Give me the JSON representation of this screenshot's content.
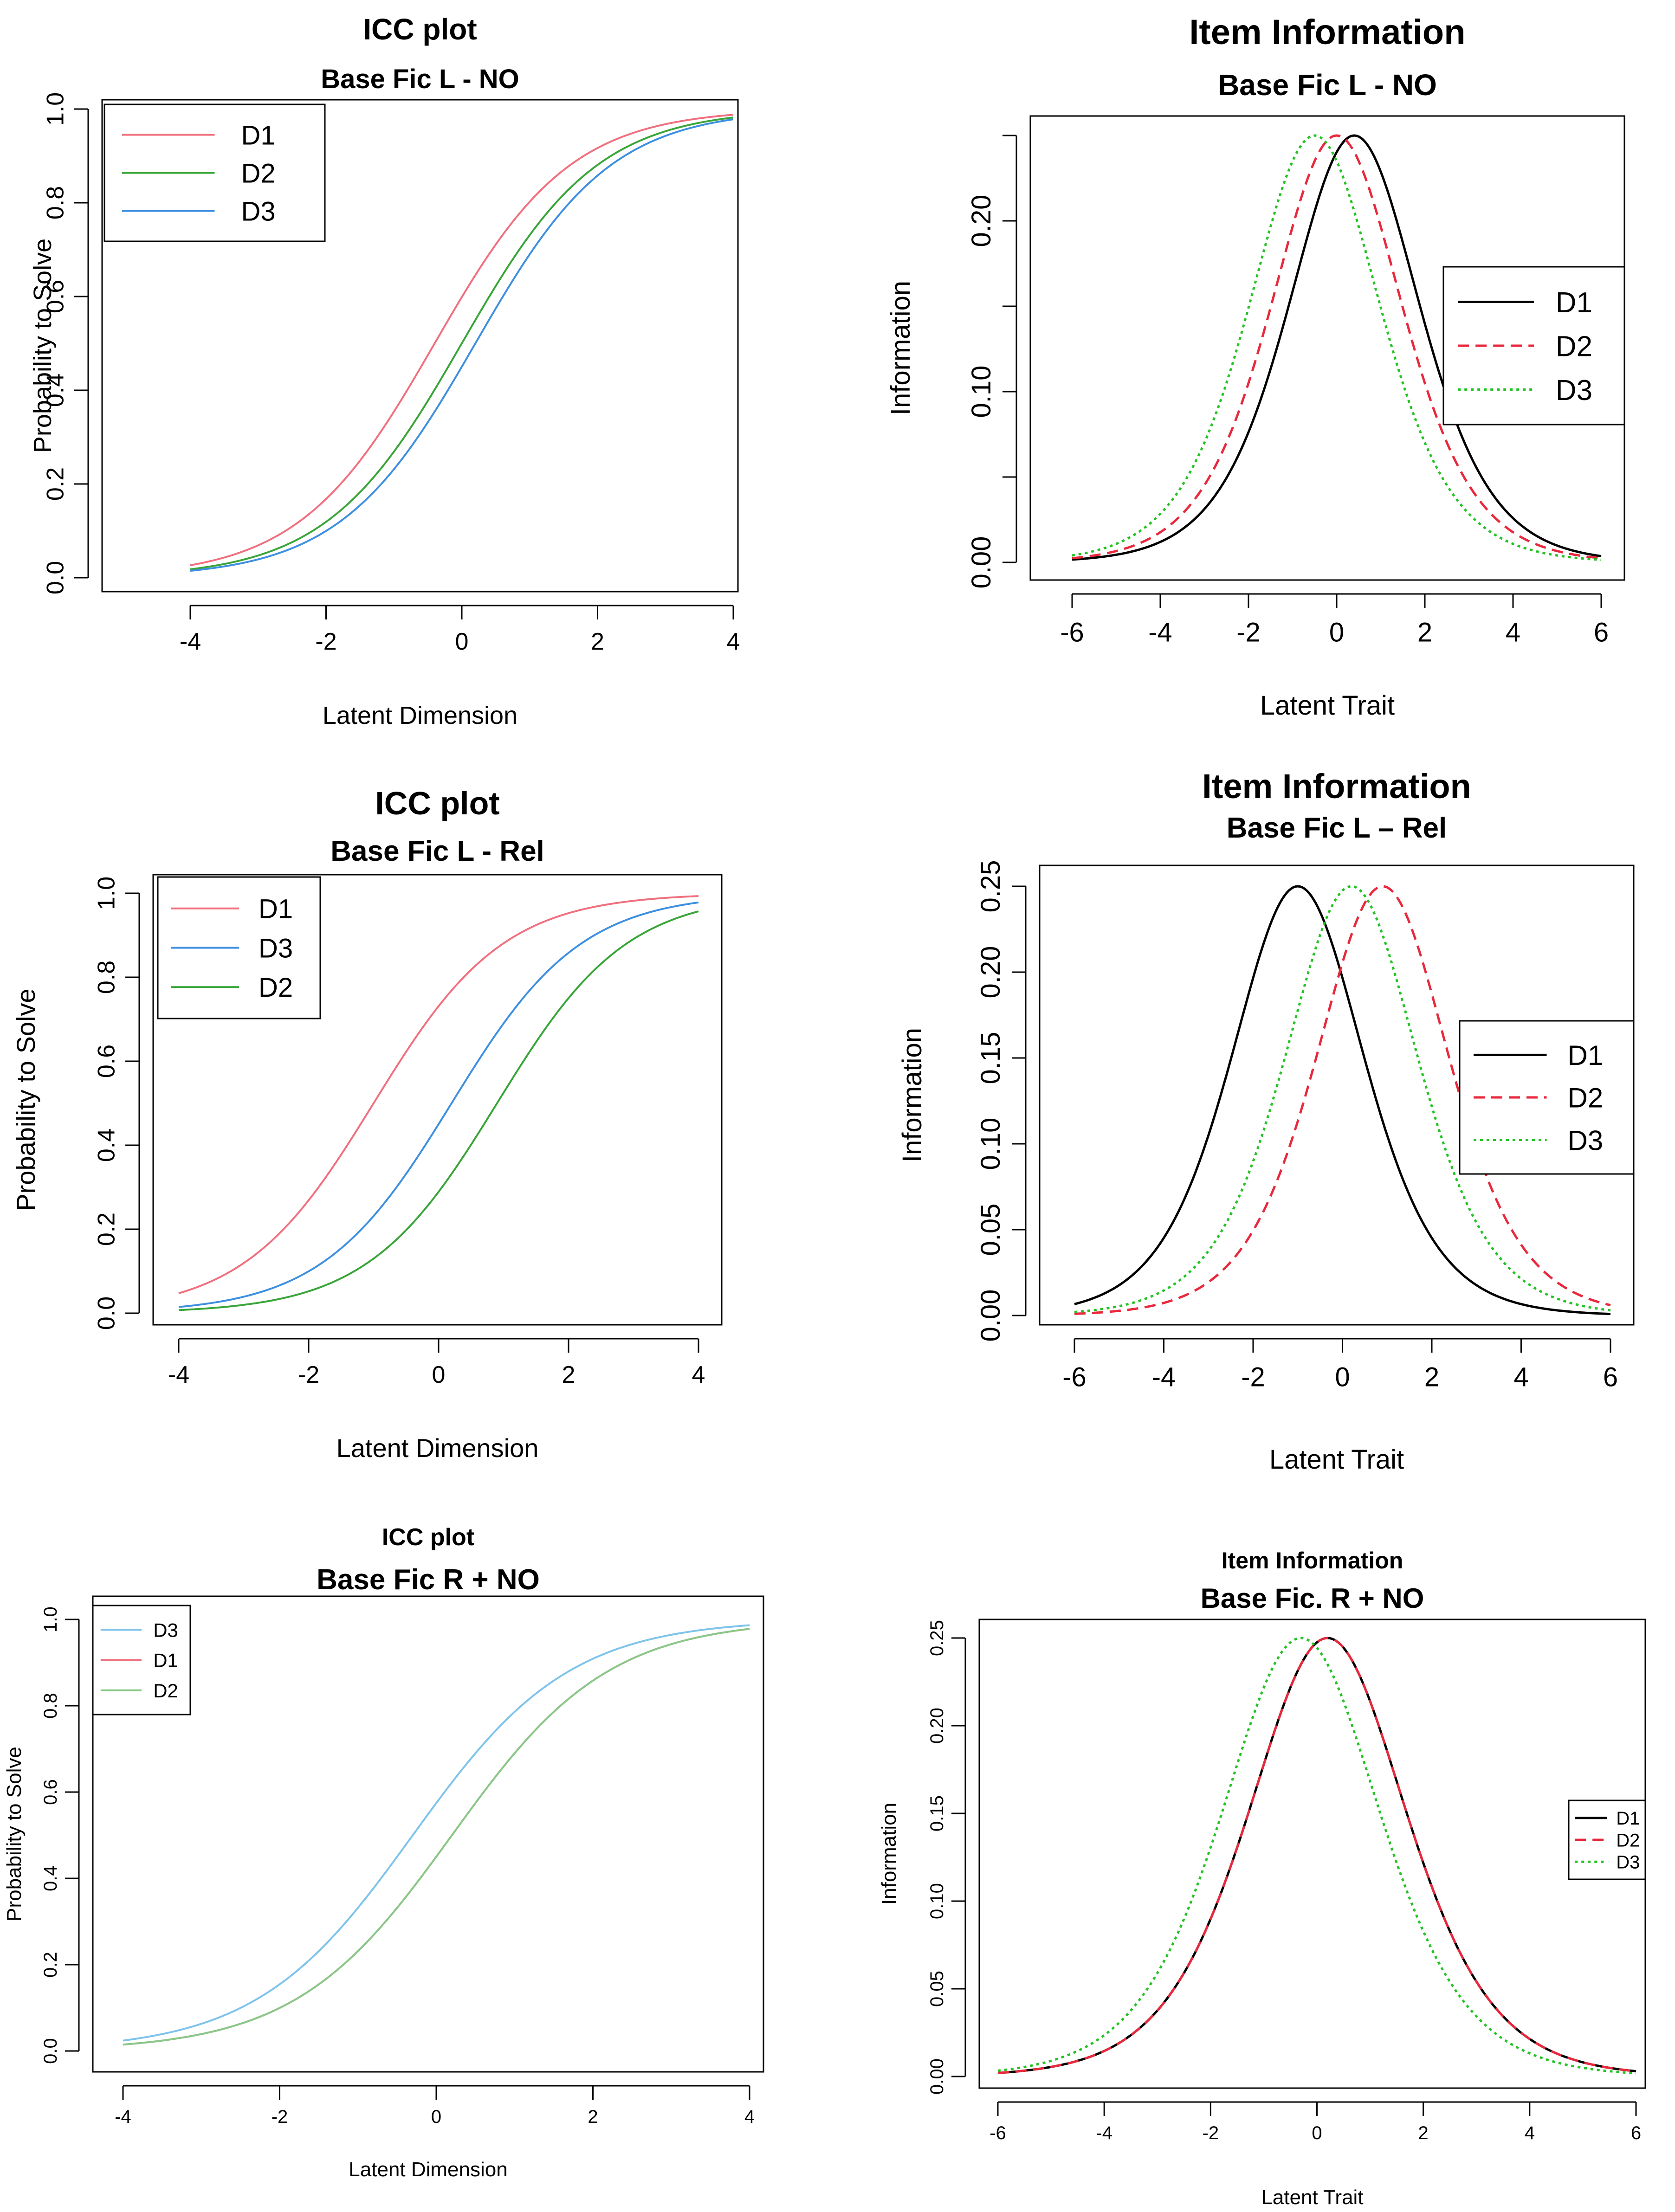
{
  "chart_data": [
    {
      "type": "line",
      "title": "ICC plot",
      "subtitle": "Base Fic L - NO",
      "xlabel": "Latent Dimension",
      "ylabel": "Probability to Solve",
      "xlim": [
        -4,
        4
      ],
      "ylim": [
        0,
        1
      ],
      "xticks": [
        "-4",
        "-2",
        "0",
        "2",
        "4"
      ],
      "yticks": [
        "0.0",
        "0.2",
        "0.4",
        "0.6",
        "0.8",
        "1.0"
      ],
      "legend_position": "top-left",
      "grid": false,
      "series": [
        {
          "name": "D1",
          "color": "#f0707f",
          "dash": "solid",
          "kind": "logistic",
          "b": -0.4
        },
        {
          "name": "D2",
          "color": "#39a539",
          "dash": "solid",
          "kind": "logistic",
          "b": 0.0
        },
        {
          "name": "D3",
          "color": "#3d8fe0",
          "dash": "solid",
          "kind": "logistic",
          "b": 0.2
        }
      ]
    },
    {
      "type": "line",
      "title": "Item Information",
      "subtitle": "Base Fic L - NO",
      "xlabel": "Latent Trait",
      "ylabel": "Information",
      "xlim": [
        -6,
        6
      ],
      "ylim": [
        0,
        0.25
      ],
      "xticks": [
        "-6",
        "-4",
        "-2",
        "0",
        "2",
        "4",
        "6"
      ],
      "yticks": [
        "0.00",
        "0.10",
        "0.20"
      ],
      "ytick_values": [
        0,
        0.05,
        0.1,
        0.15,
        0.2,
        0.25
      ],
      "legend_position": "right",
      "grid": false,
      "series": [
        {
          "name": "D1",
          "color": "#000000",
          "dash": "solid",
          "kind": "info",
          "b": 0.4
        },
        {
          "name": "D2",
          "color": "#e8283c",
          "dash": "dashed",
          "kind": "info",
          "b": 0.0
        },
        {
          "name": "D3",
          "color": "#22c322",
          "dash": "dotted",
          "kind": "info",
          "b": -0.5
        }
      ]
    },
    {
      "type": "line",
      "title": "ICC plot",
      "subtitle": "Base Fic L - Rel",
      "xlabel": "Latent Dimension",
      "ylabel": "Probability to Solve",
      "xlim": [
        -4,
        4
      ],
      "ylim": [
        0,
        1
      ],
      "xticks": [
        "-4",
        "-2",
        "0",
        "2",
        "4"
      ],
      "yticks": [
        "0.0",
        "0.2",
        "0.4",
        "0.6",
        "0.8",
        "1.0"
      ],
      "legend_position": "top-left",
      "grid": false,
      "series": [
        {
          "name": "D1",
          "color": "#f0707f",
          "dash": "solid",
          "kind": "logistic",
          "b": -1.0
        },
        {
          "name": "D3",
          "color": "#3d8fe0",
          "dash": "solid",
          "kind": "logistic",
          "b": 0.2
        },
        {
          "name": "D2",
          "color": "#39a539",
          "dash": "solid",
          "kind": "logistic",
          "b": 0.9
        }
      ]
    },
    {
      "type": "line",
      "title": "Item Information",
      "subtitle": "Base Fic L – Rel",
      "xlabel": "Latent Trait",
      "ylabel": "Information",
      "xlim": [
        -6,
        6
      ],
      "ylim": [
        0,
        0.25
      ],
      "xticks": [
        "-6",
        "-4",
        "-2",
        "0",
        "2",
        "4",
        "6"
      ],
      "yticks": [
        "0.00",
        "0.05",
        "0.10",
        "0.15",
        "0.20",
        "0.25"
      ],
      "legend_position": "right",
      "grid": false,
      "series": [
        {
          "name": "D1",
          "color": "#000000",
          "dash": "solid",
          "kind": "info",
          "b": -1.0
        },
        {
          "name": "D2",
          "color": "#e8283c",
          "dash": "dashed",
          "kind": "info",
          "b": 0.9
        },
        {
          "name": "D3",
          "color": "#22c322",
          "dash": "dotted",
          "kind": "info",
          "b": 0.2
        }
      ]
    },
    {
      "type": "line",
      "title": "ICC plot",
      "subtitle": "Base Fic R + NO",
      "xlabel": "Latent Dimension",
      "ylabel": "Probability to Solve",
      "xlim": [
        -4,
        4
      ],
      "ylim": [
        0,
        1
      ],
      "xticks": [
        "-4",
        "-2",
        "0",
        "2",
        "4"
      ],
      "yticks": [
        "0.0",
        "0.2",
        "0.4",
        "0.6",
        "0.8",
        "1.0"
      ],
      "legend_position": "top-left",
      "grid": false,
      "series": [
        {
          "name": "D3",
          "color": "#7ec3ea",
          "dash": "solid",
          "kind": "logistic",
          "b": -0.3
        },
        {
          "name": "D1",
          "color": "#f0707f",
          "dash": "solid",
          "kind": "logistic",
          "b": 0.2
        },
        {
          "name": "D2",
          "color": "#88c888",
          "dash": "solid",
          "kind": "logistic",
          "b": 0.2
        }
      ]
    },
    {
      "type": "line",
      "title": "Item Information",
      "subtitle": "Base Fic. R + NO",
      "xlabel": "Latent Trait",
      "ylabel": "Information",
      "xlim": [
        -6,
        6
      ],
      "ylim": [
        0,
        0.25
      ],
      "xticks": [
        "-6",
        "-4",
        "-2",
        "0",
        "2",
        "4",
        "6"
      ],
      "yticks": [
        "0.00",
        "0.05",
        "0.10",
        "0.15",
        "0.20",
        "0.25"
      ],
      "legend_position": "right",
      "grid": false,
      "series": [
        {
          "name": "D1",
          "color": "#000000",
          "dash": "solid",
          "kind": "info",
          "b": 0.2
        },
        {
          "name": "D2",
          "color": "#e8283c",
          "dash": "dashed",
          "kind": "info",
          "b": 0.2
        },
        {
          "name": "D3",
          "color": "#22c322",
          "dash": "dotted",
          "kind": "info",
          "b": -0.3
        }
      ]
    }
  ]
}
